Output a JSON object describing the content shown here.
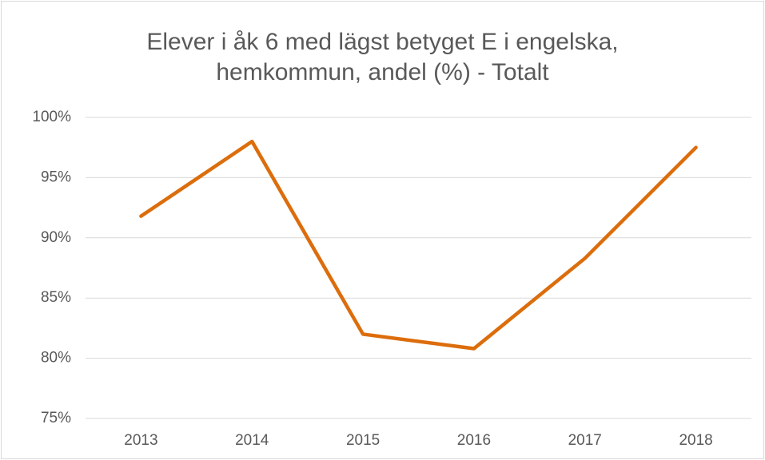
{
  "chart_data": {
    "type": "line",
    "title": "Elever i åk 6 med lägst betyget E i engelska, hemkommun, andel (%) - Totalt",
    "categories": [
      "2013",
      "2014",
      "2015",
      "2016",
      "2017",
      "2018"
    ],
    "series": [
      {
        "name": "Totalt",
        "color": "#dc6d0c",
        "values": [
          91.8,
          98.0,
          82.0,
          80.8,
          88.3,
          97.5
        ]
      }
    ],
    "ylim": [
      75,
      100
    ],
    "yticks": [
      {
        "value": 75,
        "label": "75%"
      },
      {
        "value": 80,
        "label": "80%"
      },
      {
        "value": 85,
        "label": "85%"
      },
      {
        "value": 90,
        "label": "90%"
      },
      {
        "value": 95,
        "label": "95%"
      },
      {
        "value": 100,
        "label": "100%"
      }
    ],
    "grid": true,
    "legend": false
  }
}
